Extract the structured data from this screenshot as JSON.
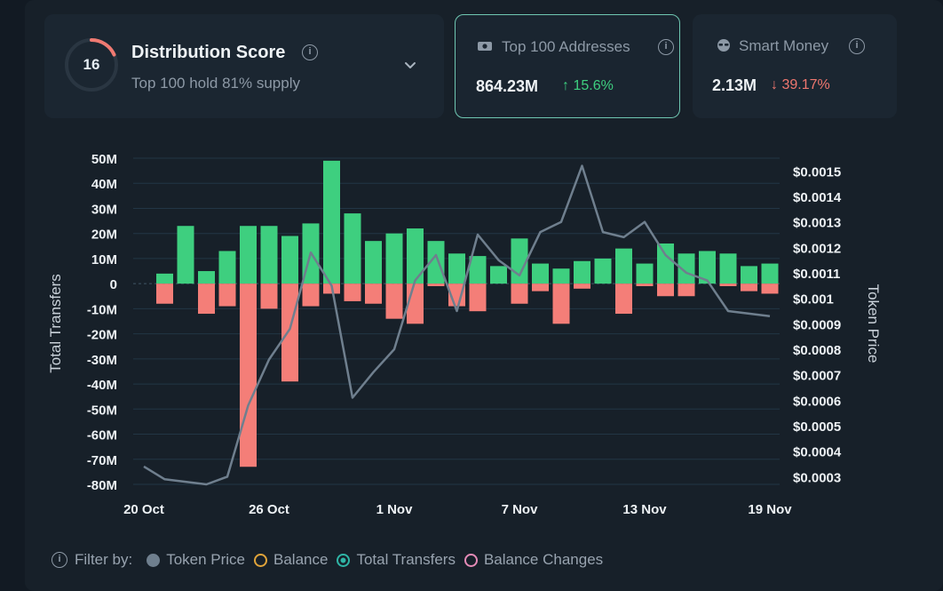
{
  "cards": {
    "distribution": {
      "score": "16",
      "title": "Distribution Score",
      "subtitle": "Top 100 hold 81% supply"
    },
    "top100": {
      "label": "Top 100 Addresses",
      "value": "864.23M",
      "delta": "↑ 15.6%"
    },
    "smart_money": {
      "label": "Smart Money",
      "value": "2.13M",
      "delta": "↓ 39.17%"
    }
  },
  "colors": {
    "positive": "#3ecf7f",
    "negative": "#f47e78",
    "price_line": "#6f7f8e",
    "accent_border": "#6fc7b2",
    "score_ring": "#f07a72"
  },
  "chart_data": {
    "type": "bar",
    "ylabel_left": "Total Transfers",
    "ylabel_right": "Token Price",
    "x_tick_labels": [
      "20 Oct",
      "26 Oct",
      "1 Nov",
      "7 Nov",
      "13 Nov",
      "19 Nov"
    ],
    "left_ticks": [
      "50M",
      "40M",
      "30M",
      "20M",
      "10M",
      "0",
      "-10M",
      "-20M",
      "-30M",
      "-40M",
      "-50M",
      "-60M",
      "-70M",
      "-80M"
    ],
    "right_ticks": [
      "$0.0015",
      "$0.0014",
      "$0.0013",
      "$0.0012",
      "$0.0011",
      "$0.001",
      "$0.0009",
      "$0.0008",
      "$0.0007",
      "$0.0006",
      "$0.0005",
      "$0.0004",
      "$0.0003"
    ],
    "ylim_left": [
      -80000000,
      50000000
    ],
    "ylim_right": [
      0.00027,
      0.00155
    ],
    "categories": [
      "20 Oct",
      "21 Oct",
      "22 Oct",
      "23 Oct",
      "24 Oct",
      "25 Oct",
      "26 Oct",
      "27 Oct",
      "28 Oct",
      "29 Oct",
      "30 Oct",
      "31 Oct",
      "1 Nov",
      "2 Nov",
      "3 Nov",
      "4 Nov",
      "5 Nov",
      "6 Nov",
      "7 Nov",
      "8 Nov",
      "9 Nov",
      "10 Nov",
      "11 Nov",
      "12 Nov",
      "13 Nov",
      "14 Nov",
      "15 Nov",
      "16 Nov",
      "17 Nov",
      "18 Nov",
      "19 Nov"
    ],
    "series": [
      {
        "name": "Total Transfers",
        "inflow": [
          0,
          4,
          23,
          5,
          13,
          23,
          23,
          19,
          24,
          49,
          28,
          17,
          20,
          22,
          17,
          12,
          11,
          7,
          18,
          8,
          6,
          9,
          10,
          14,
          8,
          16,
          12,
          13,
          12,
          7,
          8
        ],
        "outflow": [
          0,
          -8,
          0,
          -12,
          -9,
          -73,
          -10,
          -39,
          -9,
          -4,
          -7,
          -8,
          -14,
          -16,
          -1,
          -9,
          -11,
          0,
          -8,
          -3,
          -16,
          -2,
          0,
          -12,
          -1,
          -5,
          -5,
          0,
          -1,
          -3,
          -4
        ],
        "unit": "M"
      },
      {
        "name": "Token Price",
        "values": [
          0.00034,
          0.00029,
          0.00028,
          0.00027,
          0.0003,
          0.00058,
          0.00076,
          0.00088,
          0.00118,
          0.00105,
          0.00061,
          0.00071,
          0.0008,
          0.00107,
          0.00117,
          0.00095,
          0.00125,
          0.00115,
          0.00109,
          0.00126,
          0.0013,
          0.00152,
          0.00126,
          0.00124,
          0.0013,
          0.00117,
          0.0011,
          0.00107,
          0.00095,
          0.00094,
          0.00093
        ]
      }
    ],
    "legend": {
      "prefix": "Filter by:",
      "items": [
        "Token Price",
        "Balance",
        "Total Transfers",
        "Balance Changes"
      ],
      "placement": "bottom"
    },
    "grid": true
  }
}
